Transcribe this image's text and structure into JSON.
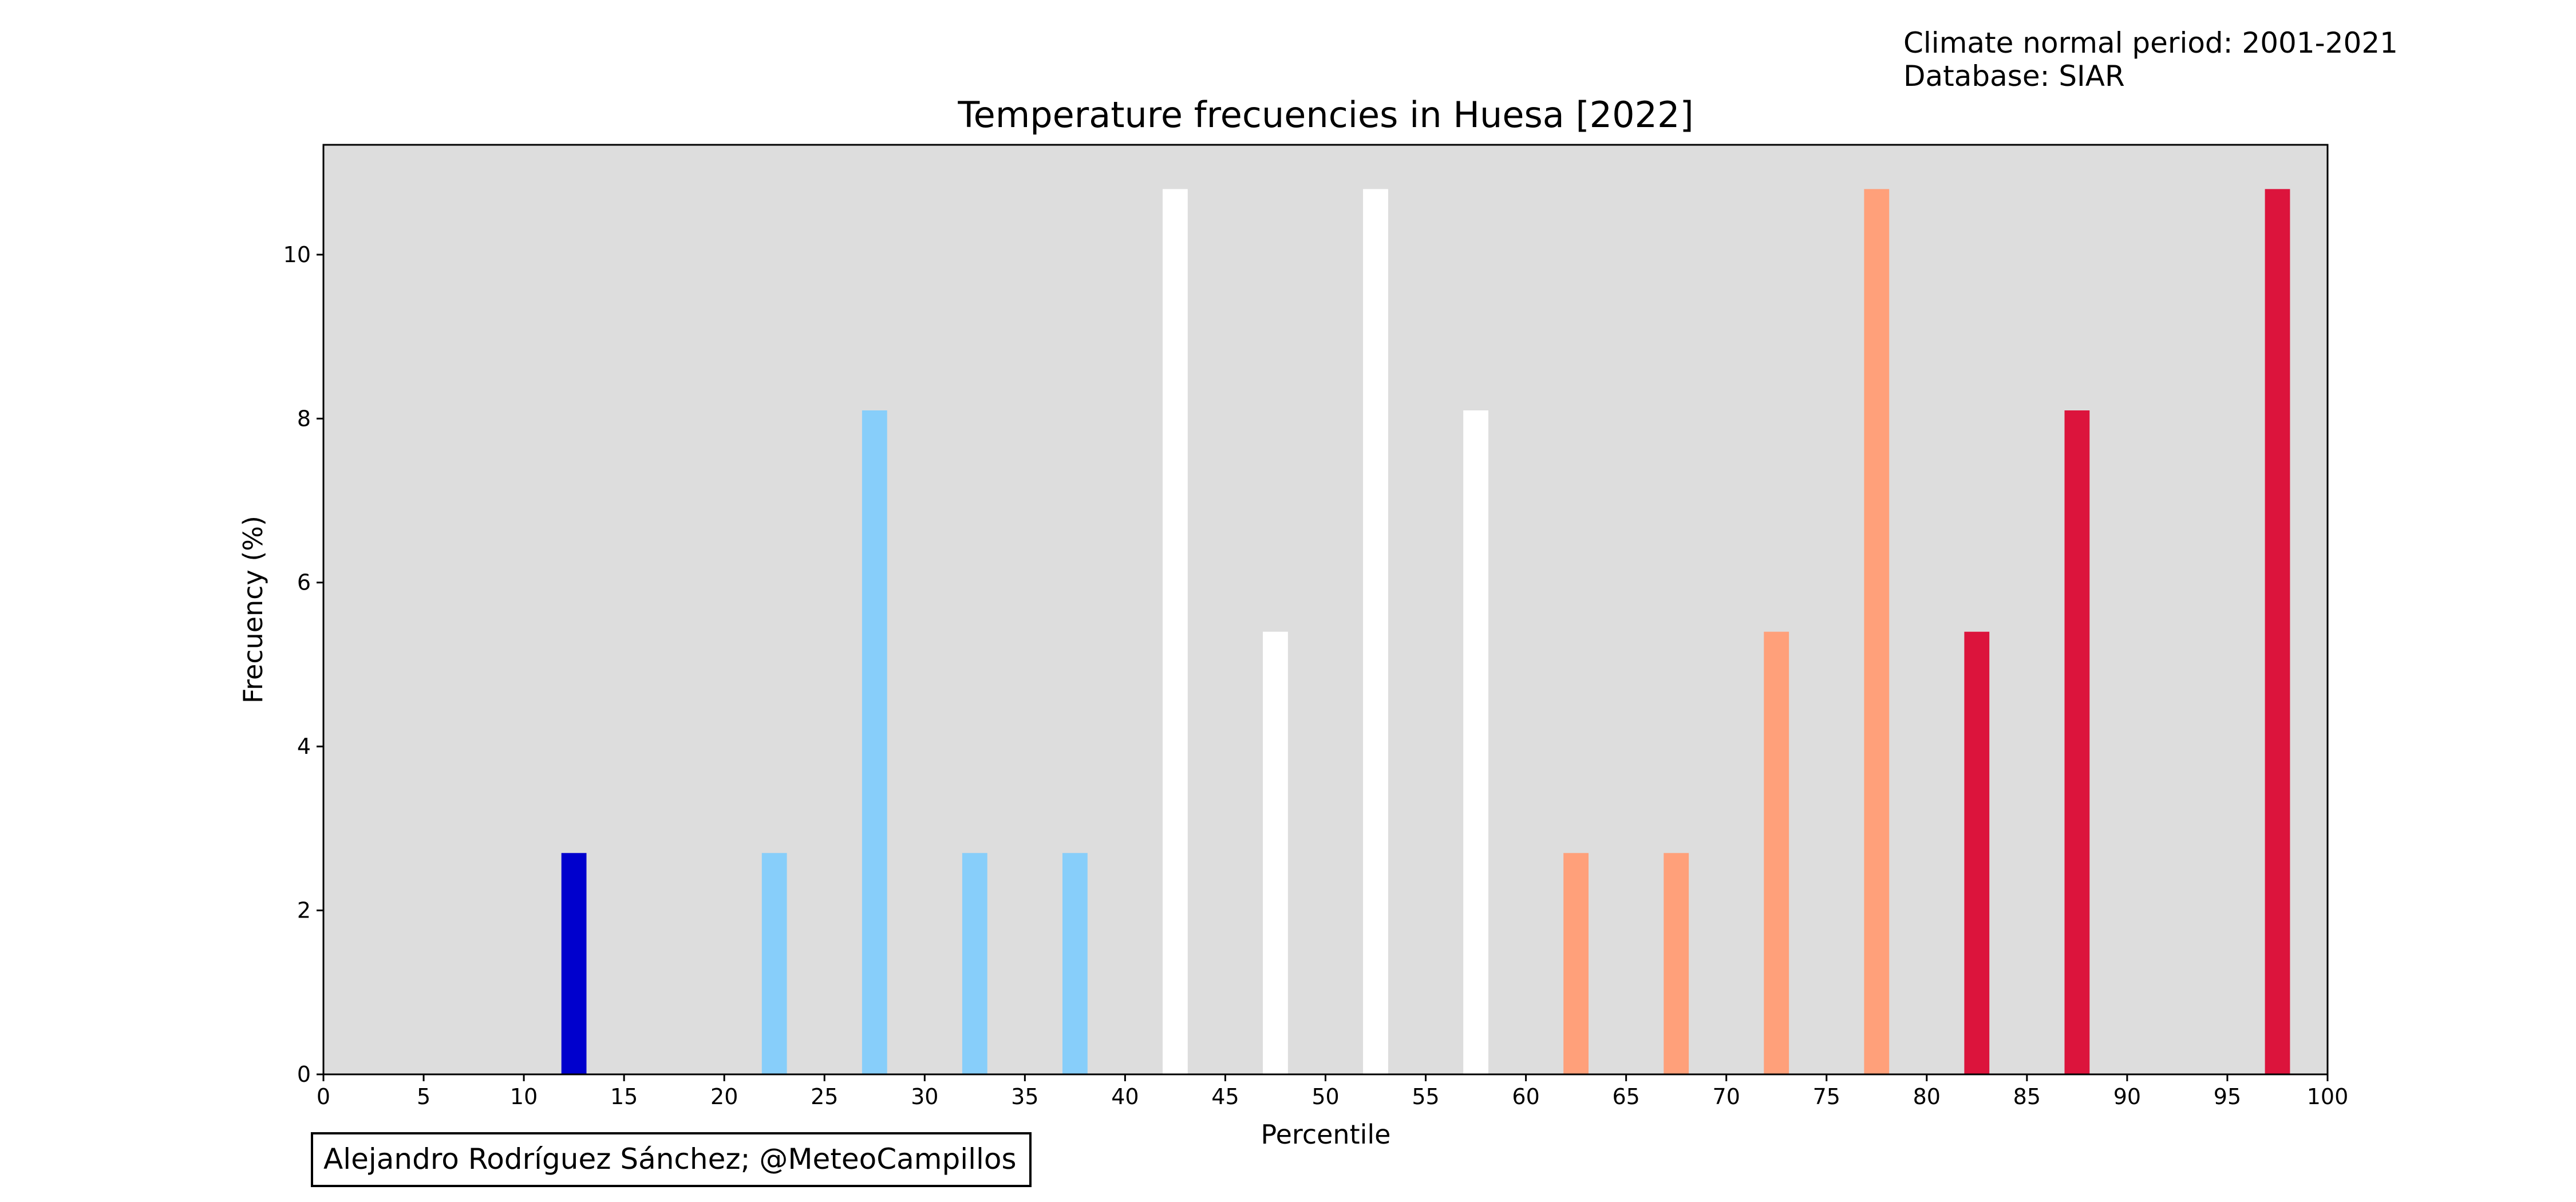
{
  "chart_data": {
    "type": "bar",
    "title": "Temperature frecuencies in Huesa [2022]",
    "xlabel": "Percentile",
    "ylabel": "Frecuency (%)",
    "xlim": [
      0,
      100
    ],
    "ylim": [
      0,
      11.34
    ],
    "xticks": [
      "0",
      "5",
      "10",
      "15",
      "20",
      "25",
      "30",
      "35",
      "40",
      "45",
      "50",
      "55",
      "60",
      "65",
      "70",
      "75",
      "80",
      "85",
      "90",
      "95",
      "100"
    ],
    "yticks": [
      "0",
      "2",
      "4",
      "6",
      "8",
      "10"
    ],
    "grid": false,
    "background_color": "#dddddd",
    "bar_width": 1.25,
    "series": [
      {
        "x": [
          12.5,
          22.5,
          27.5,
          32.5,
          37.5,
          42.5,
          47.5,
          52.5,
          57.5,
          62.5,
          67.5,
          72.5,
          77.5,
          82.5,
          87.5,
          97.5
        ],
        "values": [
          2.7,
          2.7,
          8.1,
          2.7,
          2.7,
          10.8,
          5.4,
          10.8,
          8.1,
          2.7,
          2.7,
          5.4,
          10.8,
          5.4,
          8.1,
          10.8
        ],
        "colors": [
          "#0000cd",
          "#87cefa",
          "#87cefa",
          "#87cefa",
          "#87cefa",
          "#ffffff",
          "#ffffff",
          "#ffffff",
          "#ffffff",
          "#ffa07a",
          "#ffa07a",
          "#ffa07a",
          "#ffa07a",
          "#dc143c",
          "#dc143c",
          "#dc143c"
        ]
      }
    ]
  },
  "annotations": {
    "climate_period": "Climate normal period: 2001-2021",
    "database": "Database: SIAR",
    "credit": "Alejandro Rodríguez Sánchez; @MeteoCampillos"
  }
}
